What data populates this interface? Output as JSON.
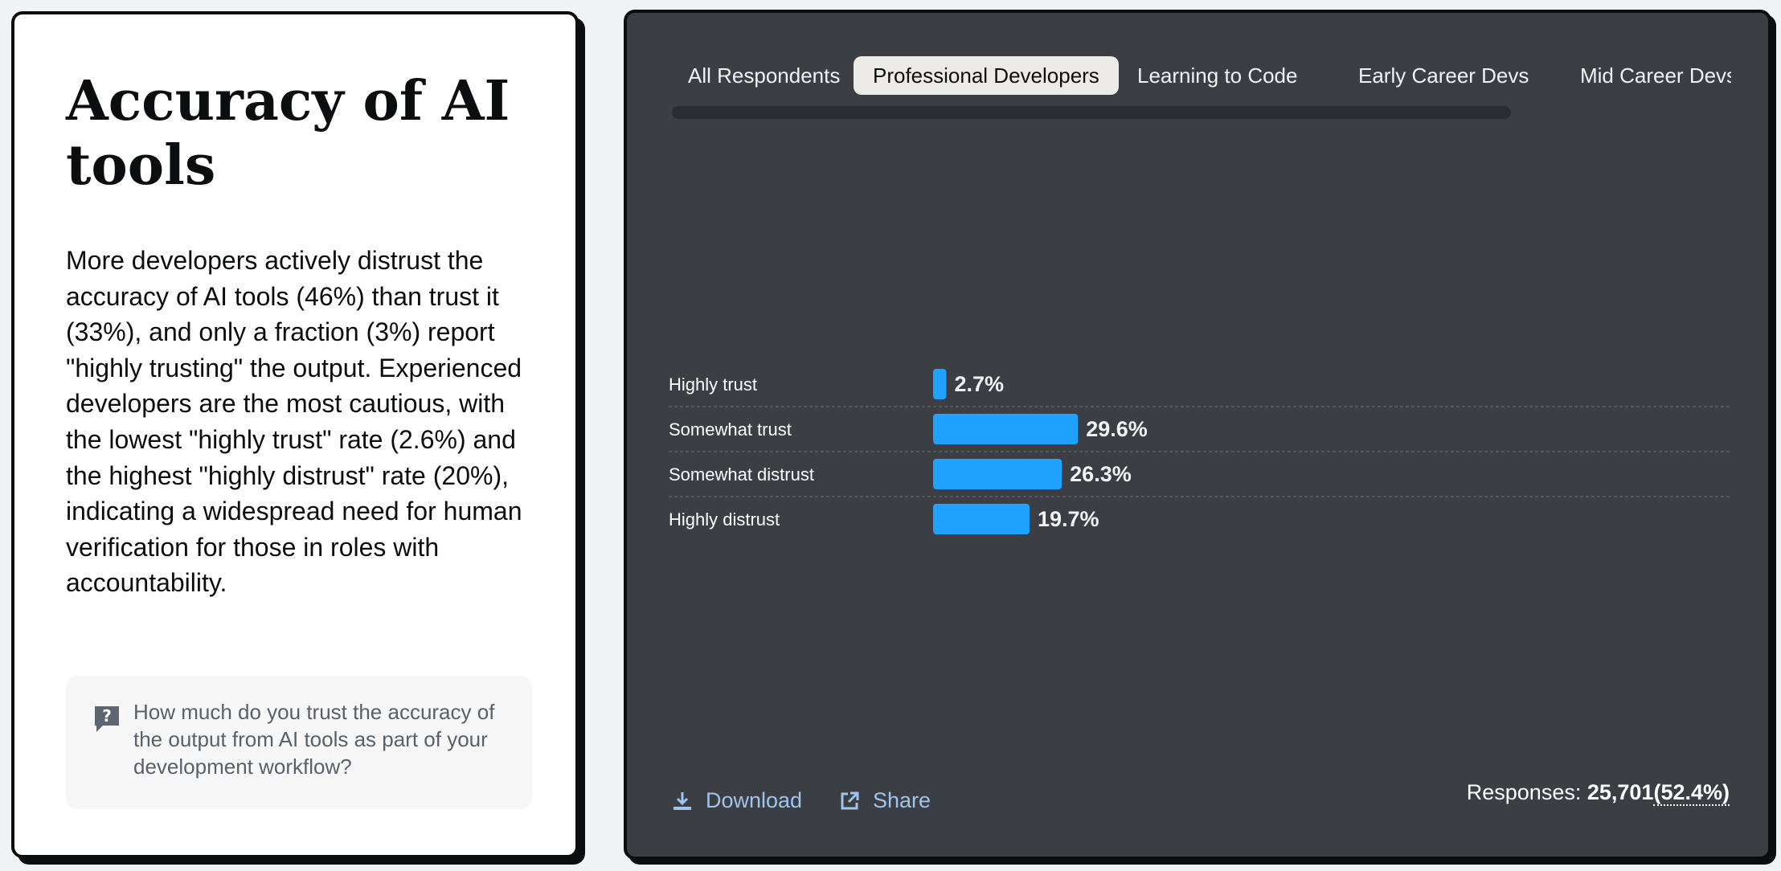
{
  "left": {
    "title": "Accuracy of AI tools",
    "description": "More developers actively distrust the accuracy of AI tools (46%) than trust it (33%), and only a fraction (3%) report \"highly trusting\" the output. Experienced developers are the most cautious, with the lowest \"highly trust\" rate (2.6%) and the highest \"highly distrust\" rate (20%), indicating a widespread need for human verification for those in roles with accountability.",
    "question": "How much do you trust the accuracy of the output from AI tools as part of your development workflow?",
    "question_icon": "question-mark-icon"
  },
  "tabs": [
    {
      "label": "All Respondents"
    },
    {
      "label": "Professional Developers"
    },
    {
      "label": "Learning to Code"
    },
    {
      "label": "Early Career Devs"
    },
    {
      "label": "Mid Career Devs"
    }
  ],
  "active_tab": "Professional Developers",
  "footer": {
    "download_label": "Download",
    "share_label": "Share",
    "responses_label": "Responses:",
    "responses_count": "25,701",
    "responses_pct": "(52.4%)"
  },
  "colors": {
    "bar": "#1fa1ff",
    "panel_bg": "#3b3f44",
    "link": "#9fc4ee"
  },
  "chart_data": {
    "type": "bar",
    "orientation": "horizontal",
    "categories": [
      "Highly trust",
      "Somewhat trust",
      "Somewhat distrust",
      "Highly distrust"
    ],
    "values": [
      2.7,
      29.6,
      26.3,
      19.7
    ],
    "value_labels": [
      "2.7%",
      "29.6%",
      "26.3%",
      "19.7%"
    ],
    "unit": "%",
    "xlim": [
      0,
      100
    ],
    "grid": false,
    "title": "",
    "xlabel": "",
    "ylabel": ""
  }
}
